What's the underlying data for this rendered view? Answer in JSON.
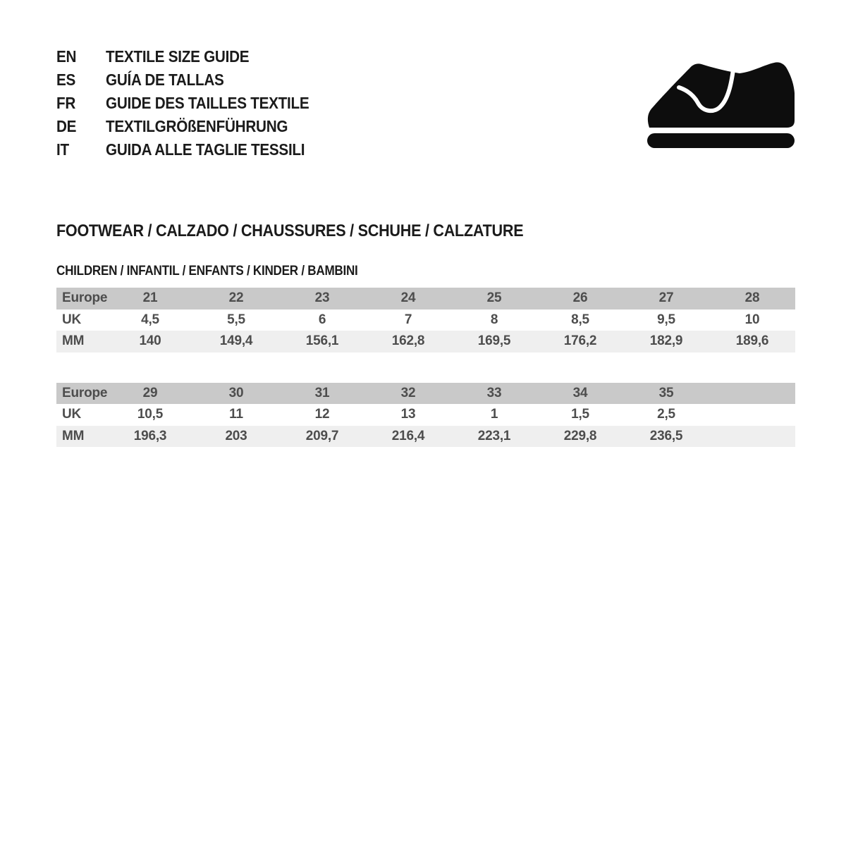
{
  "languages": [
    {
      "code": "EN",
      "label": "TEXTILE SIZE GUIDE"
    },
    {
      "code": "ES",
      "label": "GUÍA DE TALLAS"
    },
    {
      "code": "FR",
      "label": "GUIDE DES TAILLES TEXTILE"
    },
    {
      "code": "DE",
      "label": "TEXTILGRÖßENFÜHRUNG"
    },
    {
      "code": "IT",
      "label": "GUIDA ALLE TAGLIE TESSILI"
    }
  ],
  "icons": {
    "shoe": "children-shoe-icon"
  },
  "section": {
    "title": "FOOTWEAR / CALZADO / CHAUSSURES / SCHUHE / CALZATURE",
    "subtitle": "CHILDREN / INFANTIL / ENFANTS / KINDER / BAMBINI"
  },
  "size_tables": [
    {
      "columns": 8,
      "rows": [
        {
          "label": "Europe",
          "values": [
            "21",
            "22",
            "23",
            "24",
            "25",
            "26",
            "27",
            "28"
          ]
        },
        {
          "label": "UK",
          "values": [
            "4,5",
            "5,5",
            "6",
            "7",
            "8",
            "8,5",
            "9,5",
            "10"
          ]
        },
        {
          "label": "MM",
          "values": [
            "140",
            "149,4",
            "156,1",
            "162,8",
            "169,5",
            "176,2",
            "182,9",
            "189,6"
          ]
        }
      ]
    },
    {
      "columns": 8,
      "rows": [
        {
          "label": "Europe",
          "values": [
            "29",
            "30",
            "31",
            "32",
            "33",
            "34",
            "35"
          ]
        },
        {
          "label": "UK",
          "values": [
            "10,5",
            "11",
            "12",
            "13",
            "1",
            "1,5",
            "2,5"
          ]
        },
        {
          "label": "MM",
          "values": [
            "196,3",
            "203",
            "209,7",
            "216,4",
            "223,1",
            "229,8",
            "236,5"
          ]
        }
      ]
    }
  ],
  "colors": {
    "header_row_bg": "#c9c9c9",
    "alt_row_bg": "#efefef",
    "row_bg": "#ffffff",
    "table_text": "#4d4d4d",
    "heading_text": "#1b1b1b",
    "icon_color": "#0d0d0d"
  }
}
